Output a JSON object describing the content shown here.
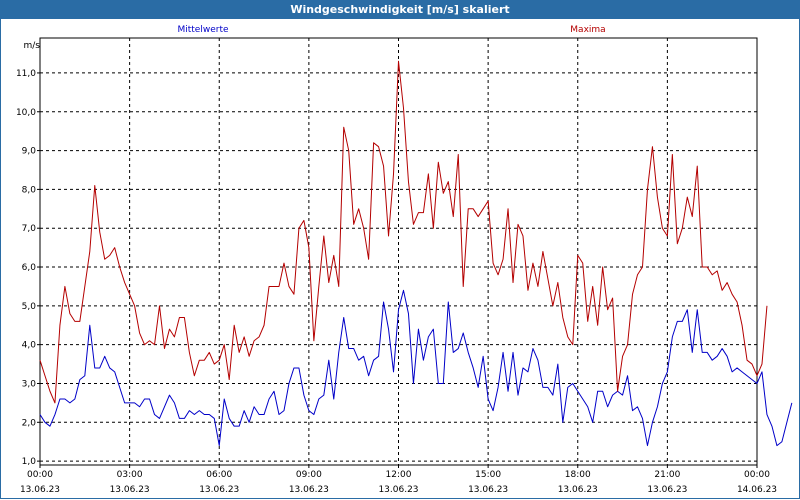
{
  "window": {
    "title": "Windgeschwindigkeit [m/s] skaliert"
  },
  "colors": {
    "title_bar": "#2a6ca5",
    "mean_series": "#0000c8",
    "max_series": "#b40000",
    "grid": "#000000"
  },
  "chart_data": {
    "type": "line",
    "title": "Windgeschwindigkeit [m/s] skaliert",
    "ylabel": "m/s",
    "xlabel": "",
    "ylim": [
      0.9,
      11.9
    ],
    "xlim_hours": [
      0,
      24
    ],
    "grid": true,
    "y_ticks": [
      "1,0",
      "2,0",
      "3,0",
      "4,0",
      "5,0",
      "6,0",
      "7,0",
      "8,0",
      "9,0",
      "10,0",
      "11,0"
    ],
    "x_ticks": [
      {
        "time": "00:00",
        "date": "13.06.23"
      },
      {
        "time": "03:00",
        "date": "13.06.23"
      },
      {
        "time": "06:00",
        "date": "13.06.23"
      },
      {
        "time": "09:00",
        "date": "13.06.23"
      },
      {
        "time": "12:00",
        "date": "13.06.23"
      },
      {
        "time": "15:00",
        "date": "13.06.23"
      },
      {
        "time": "18:00",
        "date": "13.06.23"
      },
      {
        "time": "21:00",
        "date": "13.06.23"
      },
      {
        "time": "00:00",
        "date": "14.06.23"
      }
    ],
    "interval_minutes": 10,
    "series": [
      {
        "name": "Mittelwerte",
        "color": "#0000c8",
        "values": [
          2.2,
          2.0,
          1.9,
          2.2,
          2.6,
          2.6,
          2.5,
          2.6,
          3.1,
          3.2,
          4.5,
          3.4,
          3.4,
          3.7,
          3.4,
          3.3,
          2.9,
          2.5,
          2.5,
          2.5,
          2.4,
          2.6,
          2.6,
          2.2,
          2.1,
          2.4,
          2.7,
          2.5,
          2.1,
          2.1,
          2.3,
          2.2,
          2.3,
          2.2,
          2.2,
          2.1,
          1.4,
          2.6,
          2.1,
          1.9,
          1.9,
          2.3,
          2.0,
          2.4,
          2.2,
          2.2,
          2.6,
          2.8,
          2.2,
          2.3,
          3.0,
          3.4,
          3.4,
          2.7,
          2.3,
          2.2,
          2.6,
          2.7,
          3.6,
          2.6,
          3.8,
          4.7,
          3.9,
          3.9,
          3.6,
          3.7,
          3.2,
          3.6,
          3.7,
          5.1,
          4.4,
          3.3,
          4.9,
          5.4,
          4.8,
          3.0,
          4.4,
          3.6,
          4.2,
          4.4,
          3.0,
          3.0,
          5.1,
          3.8,
          3.9,
          4.3,
          3.8,
          3.4,
          2.9,
          3.7,
          2.6,
          2.3,
          2.9,
          3.8,
          2.8,
          3.8,
          2.7,
          3.4,
          3.3,
          3.9,
          3.6,
          2.9,
          2.9,
          2.7,
          3.5,
          2.0,
          2.9,
          3.0,
          2.8,
          2.6,
          2.4,
          2.0,
          2.8,
          2.8,
          2.4,
          2.7,
          2.8,
          2.7,
          3.2,
          2.3,
          2.4,
          2.1,
          1.4,
          2.0,
          2.4,
          3.0,
          3.3,
          4.2,
          4.6,
          4.6,
          4.9,
          3.8,
          4.9,
          3.8,
          3.8,
          3.6,
          3.7,
          3.9,
          3.7,
          3.3,
          3.4,
          3.3,
          3.2,
          3.1,
          3.0,
          3.3,
          2.2,
          1.9,
          1.4,
          1.5,
          2.0,
          2.5
        ]
      },
      {
        "name": "Maxima",
        "color": "#b40000",
        "values": [
          3.6,
          3.2,
          2.8,
          2.5,
          4.5,
          5.5,
          4.8,
          4.6,
          4.6,
          5.5,
          6.4,
          8.1,
          6.9,
          6.2,
          6.3,
          6.5,
          6.0,
          5.6,
          5.3,
          5.0,
          4.3,
          4.0,
          4.1,
          4.0,
          5.0,
          3.9,
          4.4,
          4.2,
          4.7,
          4.7,
          3.8,
          3.2,
          3.6,
          3.6,
          3.8,
          3.5,
          3.6,
          4.0,
          3.1,
          4.5,
          3.8,
          4.2,
          3.7,
          4.1,
          4.2,
          4.5,
          5.5,
          5.5,
          5.5,
          6.1,
          5.5,
          5.3,
          7.0,
          7.2,
          6.5,
          4.1,
          5.5,
          6.8,
          5.6,
          6.3,
          5.5,
          9.6,
          9.0,
          7.1,
          7.5,
          7.0,
          6.2,
          9.2,
          9.1,
          8.6,
          6.8,
          8.4,
          11.3,
          10.1,
          8.2,
          7.1,
          7.4,
          7.4,
          8.4,
          7.0,
          8.7,
          7.9,
          8.2,
          7.3,
          8.9,
          5.5,
          7.5,
          7.5,
          7.3,
          7.5,
          7.7,
          6.1,
          5.8,
          6.2,
          7.5,
          5.6,
          7.1,
          6.8,
          5.4,
          6.1,
          5.5,
          6.4,
          5.7,
          5.0,
          5.6,
          4.7,
          4.2,
          4.0,
          6.3,
          6.1,
          4.6,
          5.5,
          4.5,
          6.0,
          4.9,
          5.2,
          2.8,
          3.7,
          4.0,
          5.3,
          5.8,
          6.0,
          8.0,
          9.1,
          7.8,
          7.0,
          6.8,
          8.9,
          6.6,
          7.0,
          7.8,
          7.3,
          8.6,
          6.0,
          6.0,
          5.8,
          5.9,
          5.4,
          5.6,
          5.3,
          5.1,
          4.5,
          3.6,
          3.5,
          3.2,
          3.5,
          5.0
        ]
      }
    ]
  }
}
